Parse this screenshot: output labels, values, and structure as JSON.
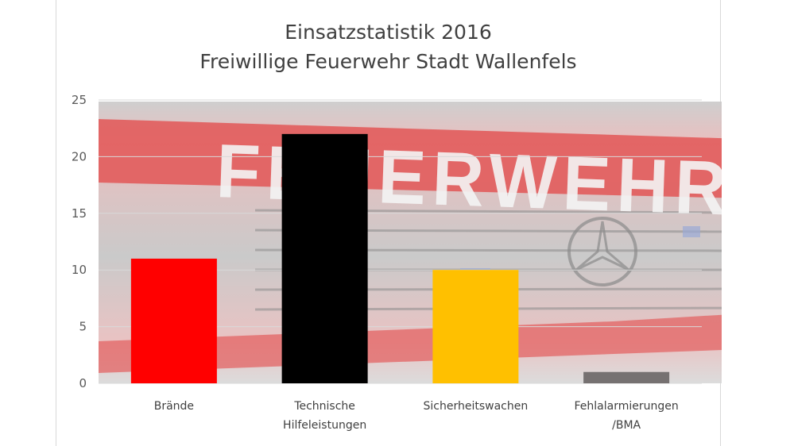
{
  "chart_data": {
    "type": "bar",
    "title_lines": [
      "Einsatzstatistik 2016",
      "Freiwillige Feuerwehr Stadt Wallenfels"
    ],
    "categories": [
      [
        "Brände"
      ],
      [
        "Technische",
        "Hilfeleistungen"
      ],
      [
        "Sicherheitswachen"
      ],
      [
        "Fehlalarmierungen",
        "/BMA"
      ]
    ],
    "values": [
      11,
      22,
      10,
      1
    ],
    "bar_colors": [
      "#ff0000",
      "#000000",
      "#ffc000",
      "#767171"
    ],
    "ylim": [
      0,
      25
    ],
    "yticks": [
      "0",
      "5",
      "10",
      "15",
      "20",
      "25"
    ],
    "grid": true,
    "legend": "none",
    "background_photo_text": "FEUERWEHR",
    "colors": {
      "title": "#404040",
      "axis_text": "#595959",
      "gridline": "#d9d9d9",
      "photo_red": "#e05050",
      "photo_dark": "#7f7f7f"
    }
  }
}
